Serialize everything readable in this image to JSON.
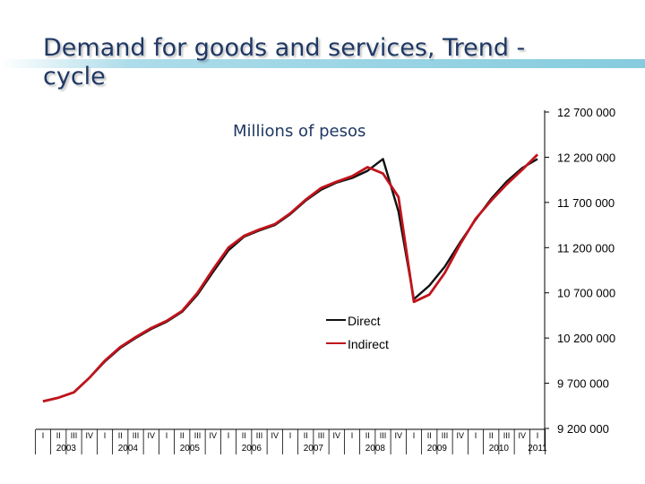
{
  "title": "Demand for goods and services, Trend -cycle",
  "chart_data": {
    "type": "line",
    "title": "Demand for goods and services, Trend -cycle",
    "ylabel": "Millions of pesos",
    "xlabel": "",
    "ylim": [
      9200000,
      12700000
    ],
    "yticks": [
      9200000,
      9700000,
      10200000,
      10700000,
      11200000,
      11700000,
      12200000,
      12700000
    ],
    "ytick_labels": [
      "9 200 000",
      "9 700 000",
      "10 200 000",
      "10 700 000",
      "11 200 000",
      "11 700 000",
      "12 200 000",
      "12 700 000"
    ],
    "quarter_labels": [
      "I",
      "II",
      "III",
      "IV"
    ],
    "years": [
      "2003",
      "2004",
      "2005",
      "2006",
      "2007",
      "2008",
      "2009",
      "2010",
      "2011"
    ],
    "quarters_in_last_year": 1,
    "legend": {
      "position": "center",
      "entries": [
        "Direct",
        "Indirect"
      ]
    },
    "series": [
      {
        "name": "Direct",
        "color": "#111111",
        "values": [
          9500000,
          9540000,
          9600000,
          9760000,
          9940000,
          10090000,
          10200000,
          10300000,
          10380000,
          10490000,
          10680000,
          10930000,
          11170000,
          11320000,
          11390000,
          11450000,
          11570000,
          11720000,
          11840000,
          11920000,
          11970000,
          12050000,
          12180000,
          11600000,
          10630000,
          10780000,
          10990000,
          11260000,
          11510000,
          11740000,
          11930000,
          12080000,
          12180000
        ]
      },
      {
        "name": "Indirect",
        "color": "#c0141c",
        "values": [
          9500000,
          9540000,
          9600000,
          9760000,
          9950000,
          10100000,
          10210000,
          10310000,
          10390000,
          10500000,
          10700000,
          10960000,
          11200000,
          11330000,
          11400000,
          11460000,
          11580000,
          11730000,
          11860000,
          11930000,
          11990000,
          12090000,
          12020000,
          11760000,
          10600000,
          10680000,
          10920000,
          11240000,
          11520000,
          11720000,
          11900000,
          12060000,
          12230000
        ]
      }
    ]
  }
}
